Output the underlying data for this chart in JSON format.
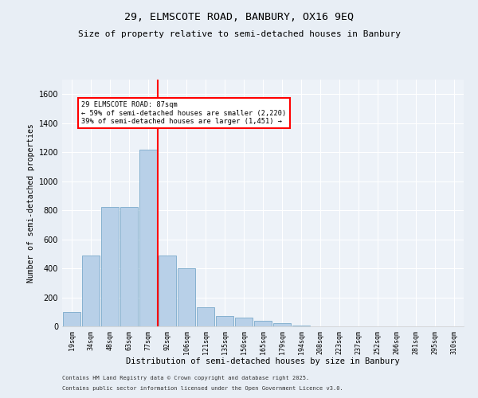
{
  "title_line1": "29, ELMSCOTE ROAD, BANBURY, OX16 9EQ",
  "title_line2": "Size of property relative to semi-detached houses in Banbury",
  "xlabel": "Distribution of semi-detached houses by size in Banbury",
  "ylabel": "Number of semi-detached properties",
  "categories": [
    "19sqm",
    "34sqm",
    "48sqm",
    "63sqm",
    "77sqm",
    "92sqm",
    "106sqm",
    "121sqm",
    "135sqm",
    "150sqm",
    "165sqm",
    "179sqm",
    "194sqm",
    "208sqm",
    "223sqm",
    "237sqm",
    "252sqm",
    "266sqm",
    "281sqm",
    "295sqm",
    "310sqm"
  ],
  "values": [
    100,
    490,
    820,
    820,
    1220,
    490,
    400,
    130,
    70,
    60,
    40,
    20,
    5,
    0,
    0,
    0,
    0,
    0,
    0,
    0,
    0
  ],
  "bar_color": "#b8d0e8",
  "bar_edge_color": "#7aaaca",
  "annotation_title": "29 ELMSCOTE ROAD: 87sqm",
  "annotation_line2": "← 59% of semi-detached houses are smaller (2,220)",
  "annotation_line3": "39% of semi-detached houses are larger (1,451) →",
  "red_line_bin": 4.5,
  "ylim": [
    0,
    1700
  ],
  "yticks": [
    0,
    200,
    400,
    600,
    800,
    1000,
    1200,
    1400,
    1600
  ],
  "footer_line1": "Contains HM Land Registry data © Crown copyright and database right 2025.",
  "footer_line2": "Contains public sector information licensed under the Open Government Licence v3.0.",
  "bg_color": "#e8eef5",
  "plot_bg_color": "#edf2f8",
  "grid_color": "#ffffff",
  "title_fontsize": 9.5,
  "subtitle_fontsize": 8,
  "tick_fontsize": 6,
  "ylabel_fontsize": 7,
  "xlabel_fontsize": 7.5,
  "footer_fontsize": 5
}
